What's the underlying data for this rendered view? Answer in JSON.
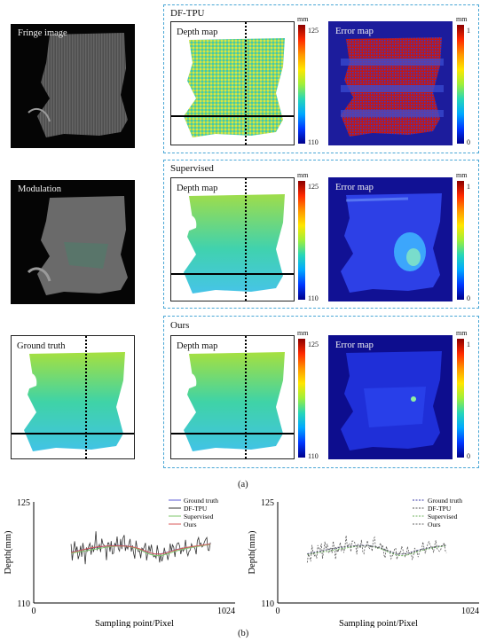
{
  "figure": {
    "caption_a": "(a)",
    "caption_b": "(b)"
  },
  "panels": {
    "fringe": "Fringe image",
    "modulation": "Modulation",
    "ground_truth": "Ground truth"
  },
  "groups": [
    {
      "title": "DF-TPU",
      "depth_label": "Depth map",
      "error_label": "Error map"
    },
    {
      "title": "Supervised",
      "depth_label": "Depth map",
      "error_label": "Error map"
    },
    {
      "title": "Ours",
      "depth_label": "Depth map",
      "error_label": "Error map"
    }
  ],
  "colorbars": {
    "depth_unit": "mm",
    "depth_max": "125",
    "depth_min": "110",
    "error_unit": "mm",
    "error_max": "1",
    "error_min": "0"
  },
  "chart_data": [
    {
      "type": "line",
      "xlabel": "Sampling point/Pixel",
      "ylabel": "Depth(mm)",
      "xlim": [
        0,
        1024
      ],
      "ylim": [
        110,
        125
      ],
      "x_ticks": [
        "0",
        "1024"
      ],
      "y_ticks": [
        "110",
        "125"
      ],
      "legend_position": "top-right",
      "series": [
        {
          "name": "Ground truth",
          "color": "#5a5ad6",
          "style": "solid"
        },
        {
          "name": "DF-TPU",
          "color": "#333333",
          "style": "solid"
        },
        {
          "name": "Supervised",
          "color": "#7cc46a",
          "style": "solid"
        },
        {
          "name": "Ours",
          "color": "#d85a5a",
          "style": "solid"
        }
      ]
    },
    {
      "type": "line",
      "xlabel": "Sampling point/Pixel",
      "ylabel": "Depth(mm)",
      "xlim": [
        0,
        1024
      ],
      "ylim": [
        110,
        125
      ],
      "x_ticks": [
        "0",
        "1024"
      ],
      "y_ticks": [
        "110",
        "125"
      ],
      "legend_position": "top-right",
      "series": [
        {
          "name": "Ground truth",
          "color": "#3a3aa8",
          "style": "dashed"
        },
        {
          "name": "DF-TPU",
          "color": "#555555",
          "style": "dashed"
        },
        {
          "name": "Supervised",
          "color": "#6fb25e",
          "style": "dashed"
        },
        {
          "name": "Ours",
          "color": "#666666",
          "style": "dashed"
        }
      ]
    }
  ]
}
